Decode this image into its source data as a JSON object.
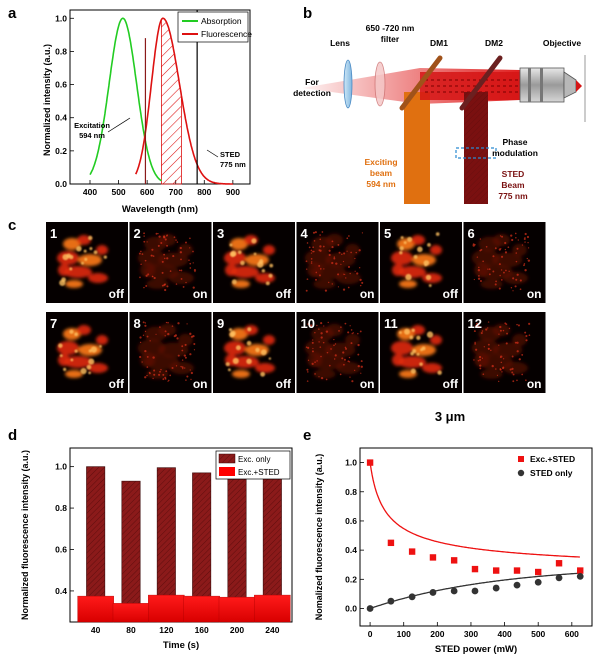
{
  "panels": {
    "a": {
      "letter": "a",
      "ylabel": "Normalized intensity (a.u.)",
      "xlabel": "Wavelength (nm)",
      "legend": [
        "Absorption",
        "Fluorescence"
      ],
      "excitation_label": [
        "Excitation",
        "594 nm"
      ],
      "sted_label": [
        "STED",
        "775 nm"
      ],
      "colors": {
        "absorption": "#22cc22",
        "fluorescence": "#dd1111"
      }
    },
    "b": {
      "letter": "b",
      "labels": {
        "lens": "Lens",
        "filter": [
          "650 -720 nm",
          "filter"
        ],
        "dm1": "DM1",
        "dm2": "DM2",
        "objective": "Objective",
        "detection": [
          "For",
          "detection"
        ],
        "phase": [
          "Phase",
          "modulation"
        ],
        "exciting": [
          "Exciting",
          "beam",
          "594 nm"
        ],
        "sted": [
          "STED",
          "Beam",
          "775 nm"
        ]
      },
      "colors": {
        "exciting": "#e07010",
        "sted": "#7a1010",
        "detect": "#e02020"
      }
    },
    "c": {
      "letter": "c",
      "frames": [
        {
          "n": "1",
          "state": "off"
        },
        {
          "n": "2",
          "state": "on"
        },
        {
          "n": "3",
          "state": "off"
        },
        {
          "n": "4",
          "state": "on"
        },
        {
          "n": "5",
          "state": "off"
        },
        {
          "n": "6",
          "state": "on"
        },
        {
          "n": "7",
          "state": "off"
        },
        {
          "n": "8",
          "state": "on"
        },
        {
          "n": "9",
          "state": "off"
        },
        {
          "n": "10",
          "state": "on"
        },
        {
          "n": "11",
          "state": "off"
        },
        {
          "n": "12",
          "state": "on"
        }
      ],
      "scale_bar": "3 μm"
    },
    "d": {
      "letter": "d"
    },
    "e": {
      "letter": "e"
    }
  },
  "chart_data": [
    {
      "panel": "a",
      "type": "line",
      "title": "",
      "xlabel": "Wavelength (nm)",
      "ylabel": "Normalized intensity (a.u.)",
      "xlim": [
        330,
        960
      ],
      "ylim": [
        0,
        1.05
      ],
      "xticks": [
        400,
        500,
        600,
        700,
        800,
        900
      ],
      "yticks": [
        0.0,
        0.2,
        0.4,
        0.6,
        0.8,
        1.0
      ],
      "series": [
        {
          "name": "Absorption",
          "peak": 515,
          "sigma": 48
        },
        {
          "name": "Fluorescence",
          "peak": 655,
          "sigma_left": 40,
          "sigma_right": 58
        }
      ],
      "markers": [
        {
          "label": "Excitation 594 nm",
          "x": 594
        },
        {
          "label": "STED 775 nm",
          "x": 775
        }
      ],
      "hatched_band": [
        650,
        720
      ],
      "legend_position": "top-right"
    },
    {
      "panel": "d",
      "type": "bar",
      "title": "",
      "xlabel": "Time (s)",
      "ylabel": "Normalized fluorescence intensity (a.u.)",
      "categories": [
        "40",
        "80",
        "120",
        "160",
        "200",
        "240"
      ],
      "ylim": [
        0.25,
        1.09
      ],
      "yticks": [
        0.4,
        0.6,
        0.8,
        1.0
      ],
      "series": [
        {
          "name": "Exc. only",
          "color": "#8b1a1a",
          "values": [
            1.0,
            0.93,
            0.995,
            0.97,
            0.94,
            0.965
          ]
        },
        {
          "name": "Exc.+STED",
          "color": "#ff0000",
          "values": [
            0.375,
            0.34,
            0.38,
            0.375,
            0.37,
            0.38
          ]
        }
      ],
      "legend_position": "top-right"
    },
    {
      "panel": "e",
      "type": "scatter",
      "title": "",
      "xlabel": "STED power (mW)",
      "ylabel": "Nomalized fluorescence intensity (a.u.)",
      "xlim": [
        -30,
        660
      ],
      "ylim": [
        -0.12,
        1.1
      ],
      "xticks": [
        0,
        100,
        200,
        300,
        400,
        500,
        600
      ],
      "yticks": [
        0.0,
        0.2,
        0.4,
        0.6,
        0.8,
        1.0
      ],
      "x": [
        0,
        62,
        125,
        187,
        250,
        312,
        375,
        437,
        500,
        562,
        625
      ],
      "series": [
        {
          "name": "Exc.+STED",
          "color": "#ee1111",
          "marker": "square",
          "values": [
            1.0,
            0.45,
            0.39,
            0.35,
            0.33,
            0.27,
            0.26,
            0.26,
            0.25,
            0.31,
            0.26
          ]
        },
        {
          "name": "STED only",
          "color": "#333333",
          "marker": "circle",
          "values": [
            0.0,
            0.05,
            0.08,
            0.11,
            0.12,
            0.12,
            0.14,
            0.16,
            0.18,
            0.21,
            0.22
          ]
        }
      ],
      "legend_position": "top-right"
    }
  ]
}
